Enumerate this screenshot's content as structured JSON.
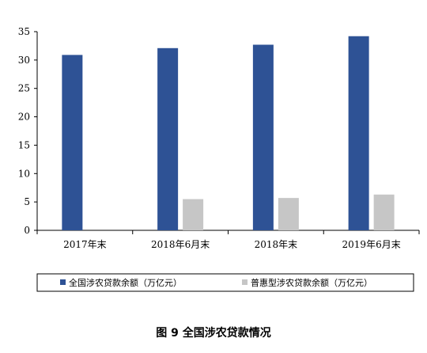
{
  "chart_data": {
    "type": "bar",
    "categories": [
      "2017年末",
      "2018年6月末",
      "2018年末",
      "2019年6月末"
    ],
    "series": [
      {
        "name": "全国涉农贷款余额（万亿元）",
        "color": "#2e5295",
        "values": [
          30.9,
          32.1,
          32.7,
          34.2
        ]
      },
      {
        "name": "普惠型涉农贷款余额（万亿元）",
        "color": "#c6c6c6",
        "values": [
          null,
          5.5,
          5.7,
          6.3
        ]
      }
    ],
    "yticks": [
      0,
      5,
      10,
      15,
      20,
      25,
      30,
      35
    ],
    "ylim": [
      0,
      35
    ],
    "grid": false,
    "legend_position": "bottom",
    "title": "",
    "xlabel": "",
    "ylabel": ""
  },
  "caption": "图 9  全国涉农贷款情况"
}
